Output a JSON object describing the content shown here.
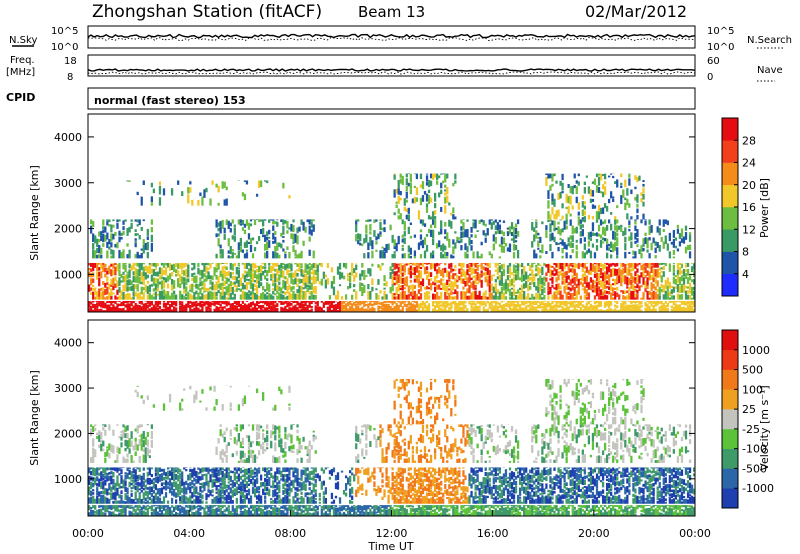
{
  "header": {
    "station_title": "Zhongshan Station (fitACF)",
    "beam_label": "Beam 13",
    "date": "02/Mar/2012"
  },
  "top_panels": {
    "nsky_label": "N.Sky",
    "nsearch_label": "N.Search",
    "freq_label_1": "Freq.",
    "freq_label_2": "[MHz]",
    "nave_label": "Nave",
    "cpid_label": "CPID",
    "cpid_text": "normal (fast stereo) 153",
    "nsky_ticks": [
      "10^5",
      "10^0"
    ],
    "nsearch_ticks": [
      "10^5",
      "10^0"
    ],
    "freq_ticks": [
      "18",
      "8"
    ],
    "nave_ticks": [
      "60",
      "0"
    ]
  },
  "chart_data": [
    {
      "type": "heatmap",
      "panel": "power",
      "xlabel": "",
      "ylabel": "Slant Range [km]",
      "xlim": [
        "00:00",
        "00:00"
      ],
      "ylim": [
        180,
        4500
      ],
      "y_ticks": [
        "1000",
        "2000",
        "3000",
        "4000"
      ],
      "colorbar_label": "Power [dB]",
      "colorbar_ticks": [
        "4",
        "8",
        "12",
        "16",
        "20",
        "24",
        "28"
      ],
      "colorbar_colors": [
        "#1e2cff",
        "#1f55a8",
        "#3a9a64",
        "#6cbd40",
        "#f2c72a",
        "#f58c1a",
        "#f2401c",
        "#e60d12"
      ]
    },
    {
      "type": "heatmap",
      "panel": "velocity",
      "xlabel": "Time UT",
      "ylabel": "Slant Range [km]",
      "xlim": [
        "00:00",
        "00:00"
      ],
      "ylim": [
        180,
        4500
      ],
      "x_ticks": [
        "00:00",
        "04:00",
        "08:00",
        "12:00",
        "16:00",
        "20:00",
        "00:00"
      ],
      "y_ticks": [
        "1000",
        "2000",
        "3000",
        "4000"
      ],
      "colorbar_label": "Velocity [m s⁻¹]",
      "colorbar_ticks": [
        "1000",
        "500",
        "100",
        "25",
        "-25",
        "-100",
        "-500",
        "-1000"
      ],
      "colorbar_colors": [
        "#1e3fb0",
        "#2b66a8",
        "#3f9a6a",
        "#5cc23a",
        "#c4c4bf",
        "#f0a020",
        "#f07a1a",
        "#ec3a16",
        "#e00f0f"
      ]
    }
  ]
}
